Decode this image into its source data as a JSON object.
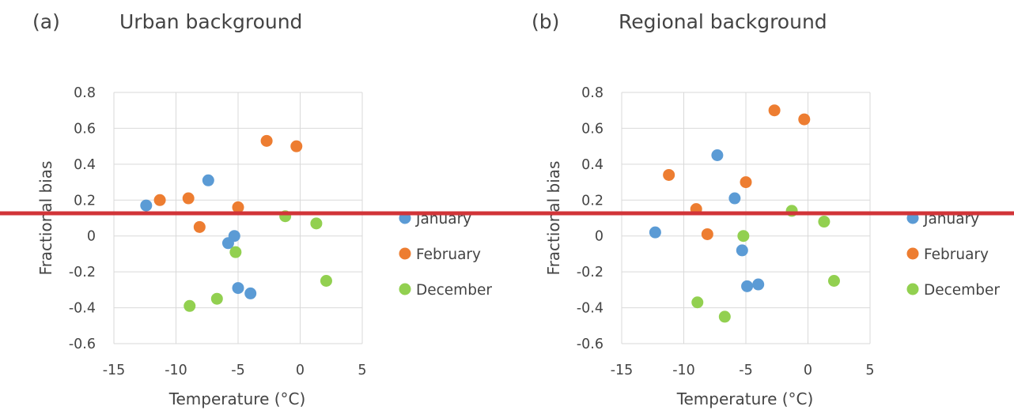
{
  "colors": {
    "January": "#5b9bd5",
    "February": "#ed7d31",
    "December": "#92d050",
    "overlay_line": "#d13438",
    "text": "#444444",
    "grid": "#d9d9d9"
  },
  "overlay": {
    "type": "horizontal red line across both panels"
  },
  "chart_data": [
    {
      "type": "scatter",
      "panel_label": "(a)",
      "title": "Urban background",
      "xlabel": "Temperature (°C)",
      "ylabel": "Fractional bias",
      "xlim": [
        -15,
        5
      ],
      "ylim": [
        -0.6,
        0.8
      ],
      "xticks": [
        -15,
        -10,
        -5,
        0,
        5
      ],
      "yticks": [
        -0.6,
        -0.4,
        -0.2,
        0,
        0.2,
        0.4,
        0.6,
        0.8
      ],
      "grid": true,
      "legend_position": "right",
      "series": [
        {
          "name": "January",
          "points": [
            [
              -12.4,
              0.17
            ],
            [
              -7.4,
              0.31
            ],
            [
              -5.3,
              0.0
            ],
            [
              -5.8,
              -0.04
            ],
            [
              -5.0,
              -0.29
            ],
            [
              -4.0,
              -0.32
            ]
          ]
        },
        {
          "name": "February",
          "points": [
            [
              -11.3,
              0.2
            ],
            [
              -9.0,
              0.21
            ],
            [
              -5.0,
              0.16
            ],
            [
              -8.1,
              0.05
            ],
            [
              -2.7,
              0.53
            ],
            [
              -0.3,
              0.5
            ]
          ]
        },
        {
          "name": "December",
          "points": [
            [
              -1.2,
              0.11
            ],
            [
              1.3,
              0.07
            ],
            [
              -5.2,
              -0.09
            ],
            [
              2.1,
              -0.25
            ],
            [
              -6.7,
              -0.35
            ],
            [
              -8.9,
              -0.39
            ]
          ]
        }
      ]
    },
    {
      "type": "scatter",
      "panel_label": "(b)",
      "title": "Regional background",
      "xlabel": "Temperature (°C)",
      "ylabel": "Fractional bias",
      "xlim": [
        -15,
        5
      ],
      "ylim": [
        -0.6,
        0.8
      ],
      "xticks": [
        -15,
        -10,
        -5,
        0,
        5
      ],
      "yticks": [
        -0.6,
        -0.4,
        -0.2,
        0,
        0.2,
        0.4,
        0.6,
        0.8
      ],
      "grid": true,
      "legend_position": "right",
      "series": [
        {
          "name": "January",
          "points": [
            [
              -7.3,
              0.45
            ],
            [
              -5.9,
              0.21
            ],
            [
              -12.3,
              0.02
            ],
            [
              -5.3,
              -0.08
            ],
            [
              -4.9,
              -0.28
            ],
            [
              -4.0,
              -0.27
            ]
          ]
        },
        {
          "name": "February",
          "points": [
            [
              -2.7,
              0.7
            ],
            [
              -0.3,
              0.65
            ],
            [
              -11.2,
              0.34
            ],
            [
              -5.0,
              0.3
            ],
            [
              -9.0,
              0.15
            ],
            [
              -8.1,
              0.01
            ]
          ]
        },
        {
          "name": "December",
          "points": [
            [
              -1.3,
              0.14
            ],
            [
              1.3,
              0.08
            ],
            [
              -5.2,
              0.0
            ],
            [
              2.1,
              -0.25
            ],
            [
              -8.9,
              -0.37
            ],
            [
              -6.7,
              -0.45
            ]
          ]
        }
      ]
    }
  ]
}
